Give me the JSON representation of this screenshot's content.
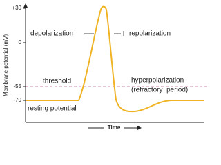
{
  "axes": {
    "y_label": "Membrane potential (mV)",
    "x_label": "Time",
    "y_ticks": [
      "+30",
      "0",
      "-55",
      "-70"
    ]
  },
  "annotations": {
    "depolarization": "depolarization",
    "repolarization": "repolarization",
    "threshold": "threshold",
    "resting": "resting potential",
    "hyperpolarization": "hyperpolarization",
    "refractory": "(refractory  period)"
  }
}
